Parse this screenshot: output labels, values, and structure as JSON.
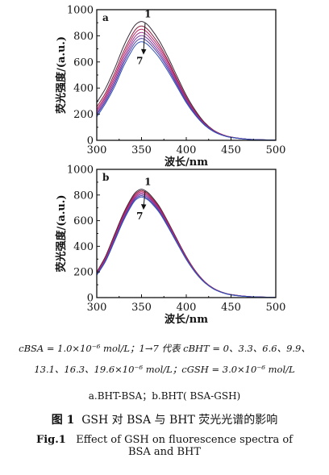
{
  "chart_data": [
    {
      "type": "line",
      "panel_label": "a",
      "xlabel": "波长/nm",
      "ylabel": "荧光强度/(a.u.)",
      "xlim": [
        300,
        500
      ],
      "ylim": [
        0,
        1000
      ],
      "x_ticks": [
        300,
        350,
        400,
        450,
        500
      ],
      "y_ticks": [
        0,
        200,
        400,
        600,
        800,
        1000
      ],
      "grid": false,
      "annotations": {
        "first": "1",
        "last": "7"
      },
      "x": [
        300,
        310,
        320,
        330,
        340,
        345,
        350,
        355,
        360,
        370,
        380,
        390,
        400,
        410,
        420,
        430,
        440,
        450,
        470,
        500
      ],
      "series": [
        {
          "values": [
            290,
            400,
            550,
            720,
            855,
            895,
            910,
            895,
            860,
            760,
            630,
            485,
            345,
            230,
            140,
            80,
            45,
            25,
            8,
            2
          ],
          "color": "#3a2a3a"
        },
        {
          "values": [
            255,
            365,
            515,
            680,
            815,
            860,
            875,
            860,
            825,
            730,
            605,
            465,
            330,
            220,
            135,
            78,
            44,
            24,
            8,
            2
          ],
          "color": "#8a2040"
        },
        {
          "values": [
            235,
            345,
            490,
            655,
            790,
            835,
            850,
            835,
            800,
            710,
            590,
            455,
            322,
            214,
            132,
            76,
            43,
            24,
            8,
            2
          ],
          "color": "#c02060"
        },
        {
          "values": [
            220,
            330,
            470,
            632,
            765,
            810,
            826,
            812,
            778,
            690,
            573,
            443,
            314,
            209,
            129,
            75,
            42,
            23,
            8,
            2
          ],
          "color": "#a0308a"
        },
        {
          "values": [
            205,
            315,
            450,
            610,
            742,
            786,
            802,
            788,
            756,
            670,
            556,
            430,
            305,
            204,
            126,
            73,
            41,
            23,
            8,
            2
          ],
          "color": "#7a3aa0"
        },
        {
          "values": [
            195,
            300,
            432,
            590,
            720,
            763,
            780,
            766,
            735,
            652,
            541,
            419,
            297,
            199,
            123,
            71,
            40,
            22,
            8,
            2
          ],
          "color": "#5040a8"
        },
        {
          "values": [
            180,
            285,
            412,
            568,
            696,
            740,
            755,
            742,
            712,
            631,
            524,
            406,
            288,
            193,
            119,
            69,
            39,
            22,
            7,
            2
          ],
          "color": "#3050b8"
        }
      ]
    },
    {
      "type": "line",
      "panel_label": "b",
      "xlabel": "波长/nm",
      "ylabel": "荧光强度/(a.u.)",
      "xlim": [
        300,
        500
      ],
      "ylim": [
        0,
        1000
      ],
      "x_ticks": [
        300,
        350,
        400,
        450,
        500
      ],
      "y_ticks": [
        0,
        200,
        400,
        600,
        800,
        1000
      ],
      "grid": false,
      "annotations": {
        "first": "1",
        "last": "7"
      },
      "x": [
        300,
        310,
        320,
        330,
        340,
        345,
        350,
        355,
        360,
        370,
        380,
        390,
        400,
        410,
        420,
        430,
        440,
        450,
        470,
        500
      ],
      "series": [
        {
          "values": [
            200,
            325,
            495,
            660,
            790,
            830,
            845,
            830,
            800,
            710,
            585,
            450,
            320,
            210,
            128,
            74,
            42,
            23,
            8,
            2
          ],
          "color": "#3a2a3a"
        },
        {
          "values": [
            195,
            318,
            485,
            650,
            780,
            820,
            835,
            820,
            790,
            702,
            578,
            445,
            316,
            208,
            127,
            73,
            41,
            23,
            8,
            2
          ],
          "color": "#8a2040"
        },
        {
          "values": [
            190,
            310,
            475,
            640,
            770,
            810,
            825,
            810,
            780,
            694,
            571,
            440,
            312,
            205,
            125,
            72,
            41,
            22,
            8,
            2
          ],
          "color": "#c02060"
        },
        {
          "values": [
            186,
            303,
            466,
            630,
            760,
            800,
            815,
            800,
            771,
            686,
            565,
            435,
            308,
            203,
            124,
            71,
            40,
            22,
            8,
            2
          ],
          "color": "#a0308a"
        },
        {
          "values": [
            182,
            297,
            458,
            620,
            750,
            790,
            805,
            790,
            762,
            678,
            558,
            430,
            304,
            200,
            122,
            70,
            40,
            22,
            8,
            2
          ],
          "color": "#7a3aa0"
        },
        {
          "values": [
            178,
            291,
            450,
            611,
            740,
            780,
            795,
            780,
            753,
            670,
            552,
            425,
            301,
            198,
            121,
            70,
            39,
            22,
            7,
            2
          ],
          "color": "#5040a8"
        },
        {
          "values": [
            174,
            285,
            442,
            602,
            730,
            770,
            785,
            771,
            744,
            662,
            545,
            420,
            297,
            196,
            120,
            69,
            39,
            21,
            7,
            2
          ],
          "color": "#3050b8"
        }
      ]
    }
  ],
  "caption": {
    "conditions_line1": "cBSA = 1.0×10⁻⁶ mol/L；1→7 代表 cBHT = 0、3.3、6.6、9.9、",
    "conditions_line2": "13.1、16.3、19.6×10⁻⁶ mol/L；cGSH = 3.0×10⁻⁶ mol/L",
    "subcaption": "a.BHT-BSA；b.BHT( BSA-GSH)",
    "title_cn_label": "图 1",
    "title_cn": "GSH 对 BSA 与 BHT 荧光光谱的影响",
    "title_en_label": "Fig.1",
    "title_en_line1": "Effect of GSH on fluorescence spectra of",
    "title_en_line2": "BSA and BHT"
  }
}
